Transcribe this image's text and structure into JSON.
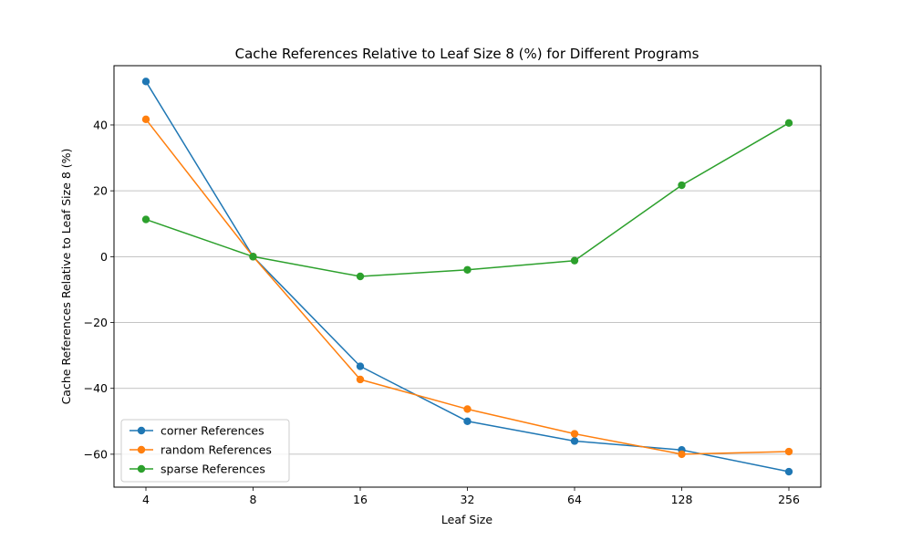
{
  "chart_data": {
    "type": "line",
    "title": "Cache References Relative to Leaf Size 8 (%) for Different Programs",
    "xlabel": "Leaf Size",
    "ylabel": "Cache References Relative to Leaf Size 8 (%)",
    "categories": [
      "4",
      "8",
      "16",
      "32",
      "64",
      "128",
      "256"
    ],
    "x_scale": "log2",
    "ylim": [
      -70,
      58
    ],
    "yticks": [
      -60,
      -40,
      -20,
      0,
      20,
      40
    ],
    "ytick_labels": [
      "−60",
      "−40",
      "−20",
      "0",
      "20",
      "40"
    ],
    "grid": "horizontal",
    "legend_position": "lower-left",
    "series": [
      {
        "name": "corner References",
        "color": "#1f77b4",
        "values": [
          53.2,
          0.0,
          -33.3,
          -50.0,
          -56.0,
          -58.7,
          -65.3
        ]
      },
      {
        "name": "random References",
        "color": "#ff7f0e",
        "values": [
          41.7,
          0.0,
          -37.3,
          -46.3,
          -53.8,
          -60.0,
          -59.2
        ]
      },
      {
        "name": "sparse References",
        "color": "#2ca02c",
        "values": [
          11.3,
          0.0,
          -6.0,
          -4.0,
          -1.2,
          21.7,
          40.6
        ]
      }
    ]
  }
}
